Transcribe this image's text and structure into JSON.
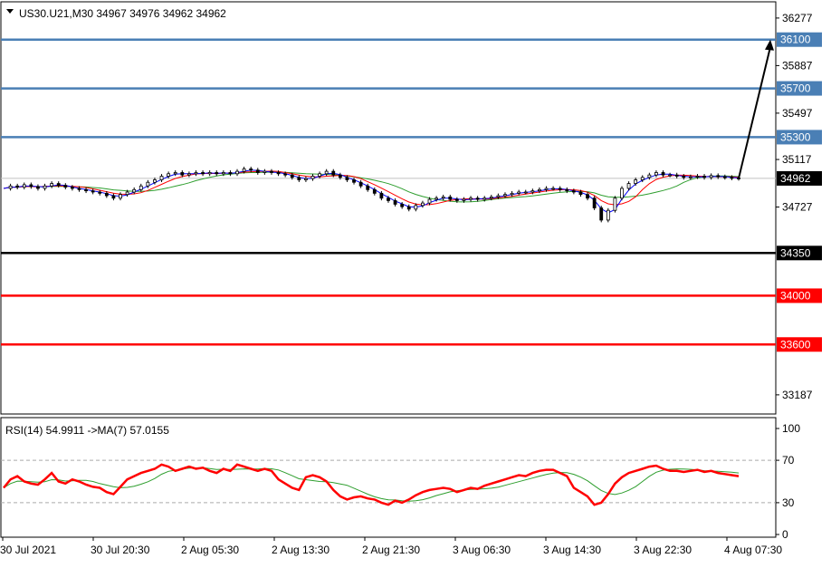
{
  "header": {
    "symbol_line": "US30.U21,M30  34967 34976 34962 34962"
  },
  "rsi_header": "RSI(14) 54.9911  ->MA(7) 57.0155",
  "colors": {
    "resistance": "#4a7fb5",
    "support_black": "#000000",
    "support_red": "#ff0000",
    "rsi_line": "#ff0000",
    "rsi_ma": "#2e9e2e",
    "ma_fast": "#0000ff",
    "ma_mid": "#ff0000",
    "ma_slow": "#2e9e2e",
    "current_price_tag": "#000000",
    "arrow": "#000000"
  },
  "chart_data": [
    {
      "type": "candlestick",
      "symbol": "US30.U21",
      "timeframe": "M30",
      "ohlc_current": {
        "open": 34967,
        "high": 34976,
        "low": 34962,
        "close": 34962
      },
      "ylim": [
        33030,
        36410
      ],
      "y_ticks": [
        36277,
        35887,
        35497,
        35117,
        34727,
        33187
      ],
      "hidden_ticks": [
        35707,
        35307,
        34347,
        33957,
        33577
      ],
      "x_ticks": [
        "30 Jul 2021",
        "30 Jul 20:30",
        "2 Aug 05:30",
        "2 Aug 13:30",
        "2 Aug 21:30",
        "3 Aug 06:30",
        "3 Aug 14:30",
        "3 Aug 22:30",
        "4 Aug 07:30"
      ],
      "current_price": 34962,
      "horizontal_levels": [
        {
          "value": 36100,
          "label": "36100",
          "role": "resistance"
        },
        {
          "value": 35700,
          "label": "35700",
          "role": "resistance"
        },
        {
          "value": 35300,
          "label": "35300",
          "role": "resistance"
        },
        {
          "value": 34350,
          "label": "34350",
          "role": "pivot"
        },
        {
          "value": 34000,
          "label": "34000",
          "role": "support"
        },
        {
          "value": 33600,
          "label": "33600",
          "role": "support"
        }
      ],
      "forecast_arrow": {
        "from": 34962,
        "to": 36100
      },
      "price_path": [
        34880,
        34900,
        34890,
        34910,
        34895,
        34880,
        34900,
        34920,
        34905,
        34890,
        34880,
        34870,
        34860,
        34850,
        34840,
        34820,
        34800,
        34830,
        34850,
        34870,
        34900,
        34930,
        34950,
        34980,
        35000,
        35010,
        34990,
        35000,
        35010,
        35000,
        35010,
        35000,
        35010,
        35000,
        35020,
        35040,
        35030,
        35010,
        35020,
        35010,
        35000,
        34990,
        34970,
        34950,
        34960,
        34980,
        35000,
        35020,
        34990,
        34970,
        34950,
        34930,
        34900,
        34870,
        34840,
        34800,
        34780,
        34750,
        34730,
        34710,
        34740,
        34760,
        34790,
        34800,
        34810,
        34790,
        34780,
        34790,
        34800,
        34790,
        34800,
        34810,
        34820,
        34830,
        34840,
        34850,
        34850,
        34860,
        34870,
        34880,
        34880,
        34870,
        34860,
        34850,
        34830,
        34800,
        34720,
        34620,
        34700,
        34800,
        34880,
        34920,
        34950,
        34970,
        34990,
        35010,
        34990,
        34990,
        34980,
        34970,
        34975,
        34980,
        34970,
        34985,
        34975,
        34970,
        34965,
        34962
      ],
      "moving_averages": [
        {
          "name": "MA fast",
          "color": "#0000ff"
        },
        {
          "name": "MA mid",
          "color": "#ff0000"
        },
        {
          "name": "MA slow",
          "color": "#2e9e2e"
        }
      ]
    },
    {
      "type": "line",
      "indicator": "RSI(14)",
      "rsi_value": 54.9911,
      "ma_value": 57.0155,
      "ylim": [
        0,
        100
      ],
      "y_ticks": [
        100,
        70,
        30,
        0
      ],
      "levels": [
        70,
        30
      ],
      "rsi_values": [
        44,
        52,
        55,
        50,
        48,
        47,
        52,
        58,
        50,
        48,
        52,
        50,
        47,
        45,
        44,
        40,
        38,
        45,
        52,
        55,
        58,
        60,
        62,
        66,
        64,
        60,
        62,
        64,
        62,
        63,
        60,
        58,
        62,
        60,
        66,
        64,
        62,
        60,
        62,
        60,
        52,
        48,
        44,
        42,
        54,
        56,
        54,
        50,
        42,
        36,
        33,
        35,
        36,
        34,
        33,
        30,
        28,
        32,
        30,
        33,
        37,
        40,
        42,
        43,
        44,
        43,
        40,
        42,
        44,
        43,
        46,
        48,
        50,
        52,
        54,
        56,
        55,
        58,
        60,
        61,
        61,
        58,
        55,
        44,
        40,
        36,
        28,
        30,
        38,
        48,
        54,
        58,
        60,
        62,
        64,
        65,
        62,
        60,
        60,
        59,
        60,
        61,
        59,
        60,
        58,
        57,
        56,
        55
      ]
    }
  ]
}
